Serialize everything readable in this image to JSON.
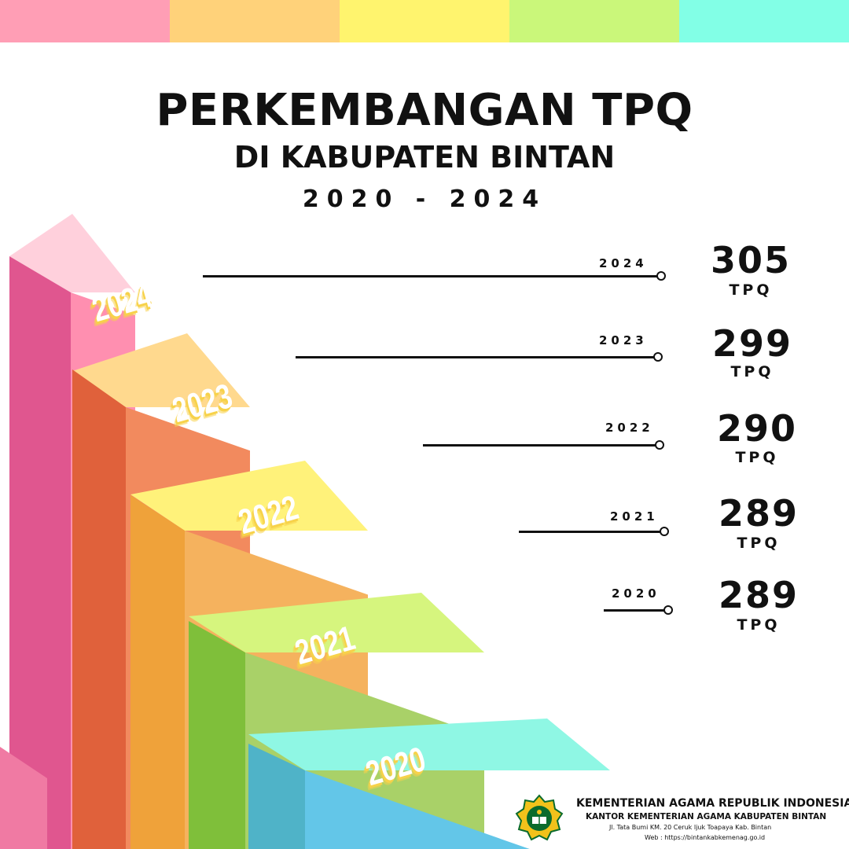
{
  "title": "PERKEMBANGAN TPQ",
  "subtitle": "DI KABUPATEN BINTAN",
  "period": "2020 - 2024",
  "colors": {
    "topbar": [
      "#ff9eb5",
      "#ffd27a",
      "#fff46e",
      "#caf77a",
      "#82ffe6"
    ],
    "steps": {
      "2024": {
        "top": "#ffd0dc",
        "front": "#ff8fb0",
        "side": "#e0568f"
      },
      "2023": {
        "top": "#ffd98e",
        "front": "#f28a5e",
        "side": "#e0613b"
      },
      "2022": {
        "top": "#fff27a",
        "front": "#f5b25e",
        "side": "#efa23a"
      },
      "2021": {
        "top": "#d6f57e",
        "front": "#a9d168",
        "side": "#7fbf3a"
      },
      "2020": {
        "top": "#8ff7e4",
        "front": "#63c6e8",
        "side": "#4fb3c8"
      }
    }
  },
  "chart_data": {
    "type": "bar",
    "title": "PERKEMBANGAN TPQ",
    "subtitle": "DI KABUPATEN BINTAN",
    "period": "2020 - 2024",
    "unit": "TPQ",
    "categories": [
      "2024",
      "2023",
      "2022",
      "2021",
      "2020"
    ],
    "values": [
      305,
      299,
      290,
      289,
      289
    ]
  },
  "footer": {
    "line1": "KEMENTERIAN AGAMA REPUBLIK INDONESIA",
    "line2": "KANTOR KEMENTERIAN AGAMA KABUPATEN BINTAN",
    "line3": "Jl. Tata Bumi KM. 20 Ceruk Ijuk Toapaya Kab. Bintan",
    "line4": "Web : https://bintankabkemenag.go.id",
    "emblem_icon": "kemenag-emblem-icon"
  }
}
